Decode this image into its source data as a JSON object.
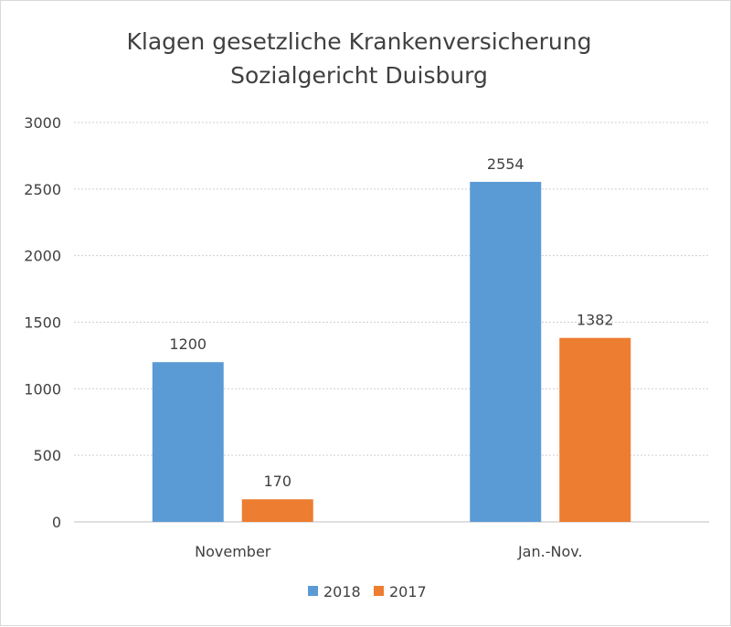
{
  "chart_data": {
    "type": "bar",
    "title": "Klagen gesetzliche Krankenversicherung",
    "subtitle": "Sozialgericht Duisburg",
    "categories": [
      "November",
      "Jan.-Nov."
    ],
    "series": [
      {
        "name": "2018",
        "values": [
          1200,
          2554
        ],
        "color": "#5b9bd5"
      },
      {
        "name": "2017",
        "values": [
          170,
          1382
        ],
        "color": "#ed7d31"
      }
    ],
    "xlabel": "",
    "ylabel": "",
    "ylim": [
      0,
      3000
    ],
    "yticks": [
      0,
      500,
      1000,
      1500,
      2000,
      2500,
      3000
    ],
    "grid": true,
    "legend_position": "bottom"
  }
}
